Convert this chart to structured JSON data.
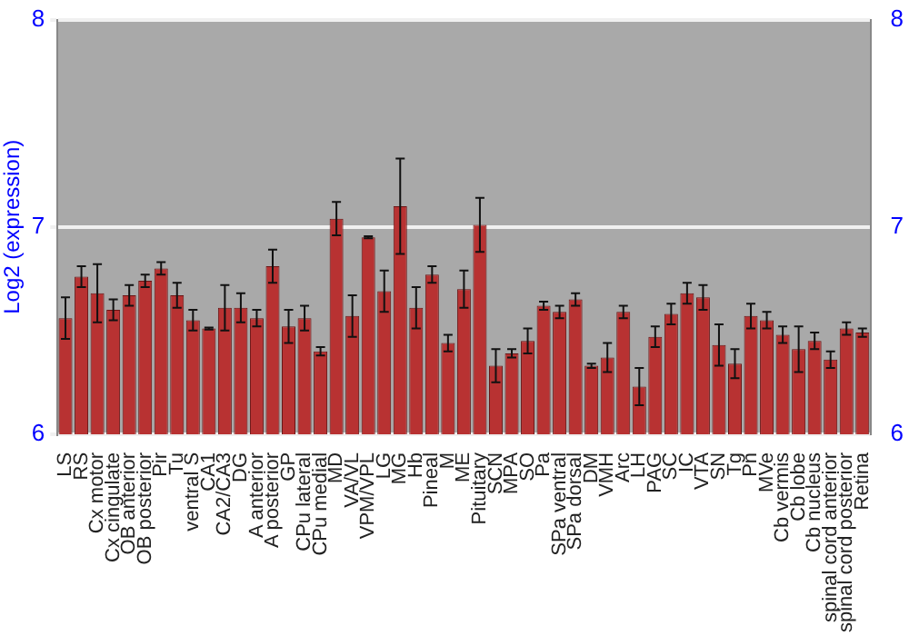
{
  "chart_data": {
    "type": "bar",
    "ylabel": "Log2 (expression)",
    "categories": [
      "LS",
      "RS",
      "Cx motor",
      "Cx cingulate",
      "OB anterior",
      "OB posterior",
      "Pir",
      "Tu",
      "ventral S",
      "CA1",
      "CA2/CA3",
      "DG",
      "A anterior",
      "A posterior",
      "GP",
      "CPu lateral",
      "CPu medial",
      "MD",
      "VA/VL",
      "VPM/VPL",
      "LG",
      "MG",
      "Hb",
      "Pineal",
      "M",
      "ME",
      "Pituitary",
      "SCN",
      "MPA",
      "SO",
      "Pa",
      "SPa ventral",
      "SPa dorsal",
      "DM",
      "VMH",
      "Arc",
      "LH",
      "PAG",
      "SC",
      "IC",
      "VTA",
      "SN",
      "Tg",
      "Pn",
      "MVe",
      "Cb vermis",
      "Cb lobe",
      "Cb nucleus",
      "spinal cord anterior",
      "spinal cord posterior",
      "Retina"
    ],
    "values": [
      6.56,
      6.76,
      6.68,
      6.6,
      6.67,
      6.74,
      6.8,
      6.67,
      6.55,
      6.51,
      6.61,
      6.61,
      6.56,
      6.81,
      6.52,
      6.56,
      6.4,
      7.04,
      6.57,
      6.95,
      6.69,
      7.1,
      6.61,
      6.77,
      6.44,
      6.7,
      7.01,
      6.33,
      6.39,
      6.45,
      6.62,
      6.59,
      6.65,
      6.33,
      6.37,
      6.59,
      6.23,
      6.47,
      6.58,
      6.68,
      6.66,
      6.43,
      6.34,
      6.57,
      6.55,
      6.48,
      6.41,
      6.45,
      6.36,
      6.51,
      6.49
    ],
    "errors": [
      0.1,
      0.05,
      0.14,
      0.05,
      0.05,
      0.03,
      0.03,
      0.06,
      0.05,
      0.005,
      0.11,
      0.07,
      0.04,
      0.08,
      0.08,
      0.06,
      0.02,
      0.08,
      0.1,
      0.005,
      0.1,
      0.23,
      0.1,
      0.04,
      0.04,
      0.09,
      0.13,
      0.08,
      0.02,
      0.06,
      0.02,
      0.03,
      0.03,
      0.01,
      0.07,
      0.03,
      0.09,
      0.05,
      0.05,
      0.05,
      0.06,
      0.1,
      0.07,
      0.06,
      0.04,
      0.04,
      0.11,
      0.04,
      0.04,
      0.03,
      0.02
    ],
    "color": "#b83232",
    "ylim": [
      6,
      8
    ],
    "yticks": [
      6,
      7,
      8
    ],
    "y2lim": [
      6,
      8
    ],
    "y2ticks": [
      6,
      7,
      8
    ],
    "grid": "y"
  }
}
